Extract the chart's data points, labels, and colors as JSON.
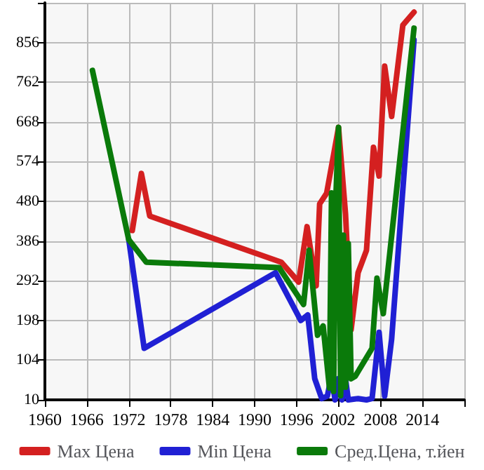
{
  "chart_data": {
    "type": "line",
    "xlim": [
      1960,
      2020
    ],
    "xticks": [
      1960,
      1966,
      1972,
      1978,
      1984,
      1990,
      1996,
      2002,
      2008,
      2014,
      {
        "value": 2020,
        "label": null
      }
    ],
    "ylim": [
      10,
      950
    ],
    "yticks": [
      10,
      104,
      198,
      292,
      386,
      480,
      574,
      668,
      762,
      856,
      {
        "value": 950,
        "label": null
      }
    ],
    "grid": true,
    "legend": "bottom",
    "marker": "none",
    "line_style": "solid",
    "series": [
      {
        "name": "Max Цена",
        "color": "#d42020",
        "x": [
          1972.5,
          1973.8,
          1975,
          1993.8,
          1996.3,
          1997.5,
          1998.8,
          1999.3,
          2000.3,
          2002,
          2003,
          2003.8,
          2004.8,
          2006,
          2007,
          2007.8,
          2008.6,
          2009.6,
          2011.2,
          2012.8
        ],
        "values": [
          411,
          546,
          445,
          336,
          289,
          420,
          280,
          474,
          499,
          655,
          450,
          176,
          311,
          364,
          608,
          540,
          800,
          681,
          897,
          928
        ]
      },
      {
        "name": "Min Цена",
        "color": "#2020d4",
        "x": [
          1972,
          1974.2,
          1993,
          1996.6,
          1997.6,
          1998.6,
          1999.6,
          2000.4,
          2001,
          2001.5,
          2002,
          2002.5,
          2003,
          2003.4,
          2004.8,
          2006,
          2006.8,
          2007.8,
          2008.6,
          2009.6,
          2012.8
        ],
        "values": [
          389,
          132,
          311,
          198,
          211,
          60,
          13,
          19,
          66,
          10,
          60,
          10,
          60,
          10,
          13,
          10,
          13,
          170,
          19,
          154,
          862
        ]
      },
      {
        "name": "Сред.Цена, т.йен",
        "color": "#0a7a0a",
        "x": [
          1966.8,
          1972,
          1974.5,
          1993.5,
          1997,
          1997.8,
          1999,
          1999.8,
          2000.7,
          2001,
          2001.3,
          2001.6,
          2002,
          2002.3,
          2002.7,
          2003,
          2003.4,
          2003.8,
          2004.4,
          2006.8,
          2007.5,
          2008.4,
          2012.8
        ],
        "values": [
          790,
          389,
          336,
          323,
          236,
          364,
          163,
          185,
          38,
          500,
          30,
          480,
          655,
          20,
          400,
          40,
          380,
          60,
          66,
          132,
          298,
          214,
          890
        ]
      }
    ]
  }
}
